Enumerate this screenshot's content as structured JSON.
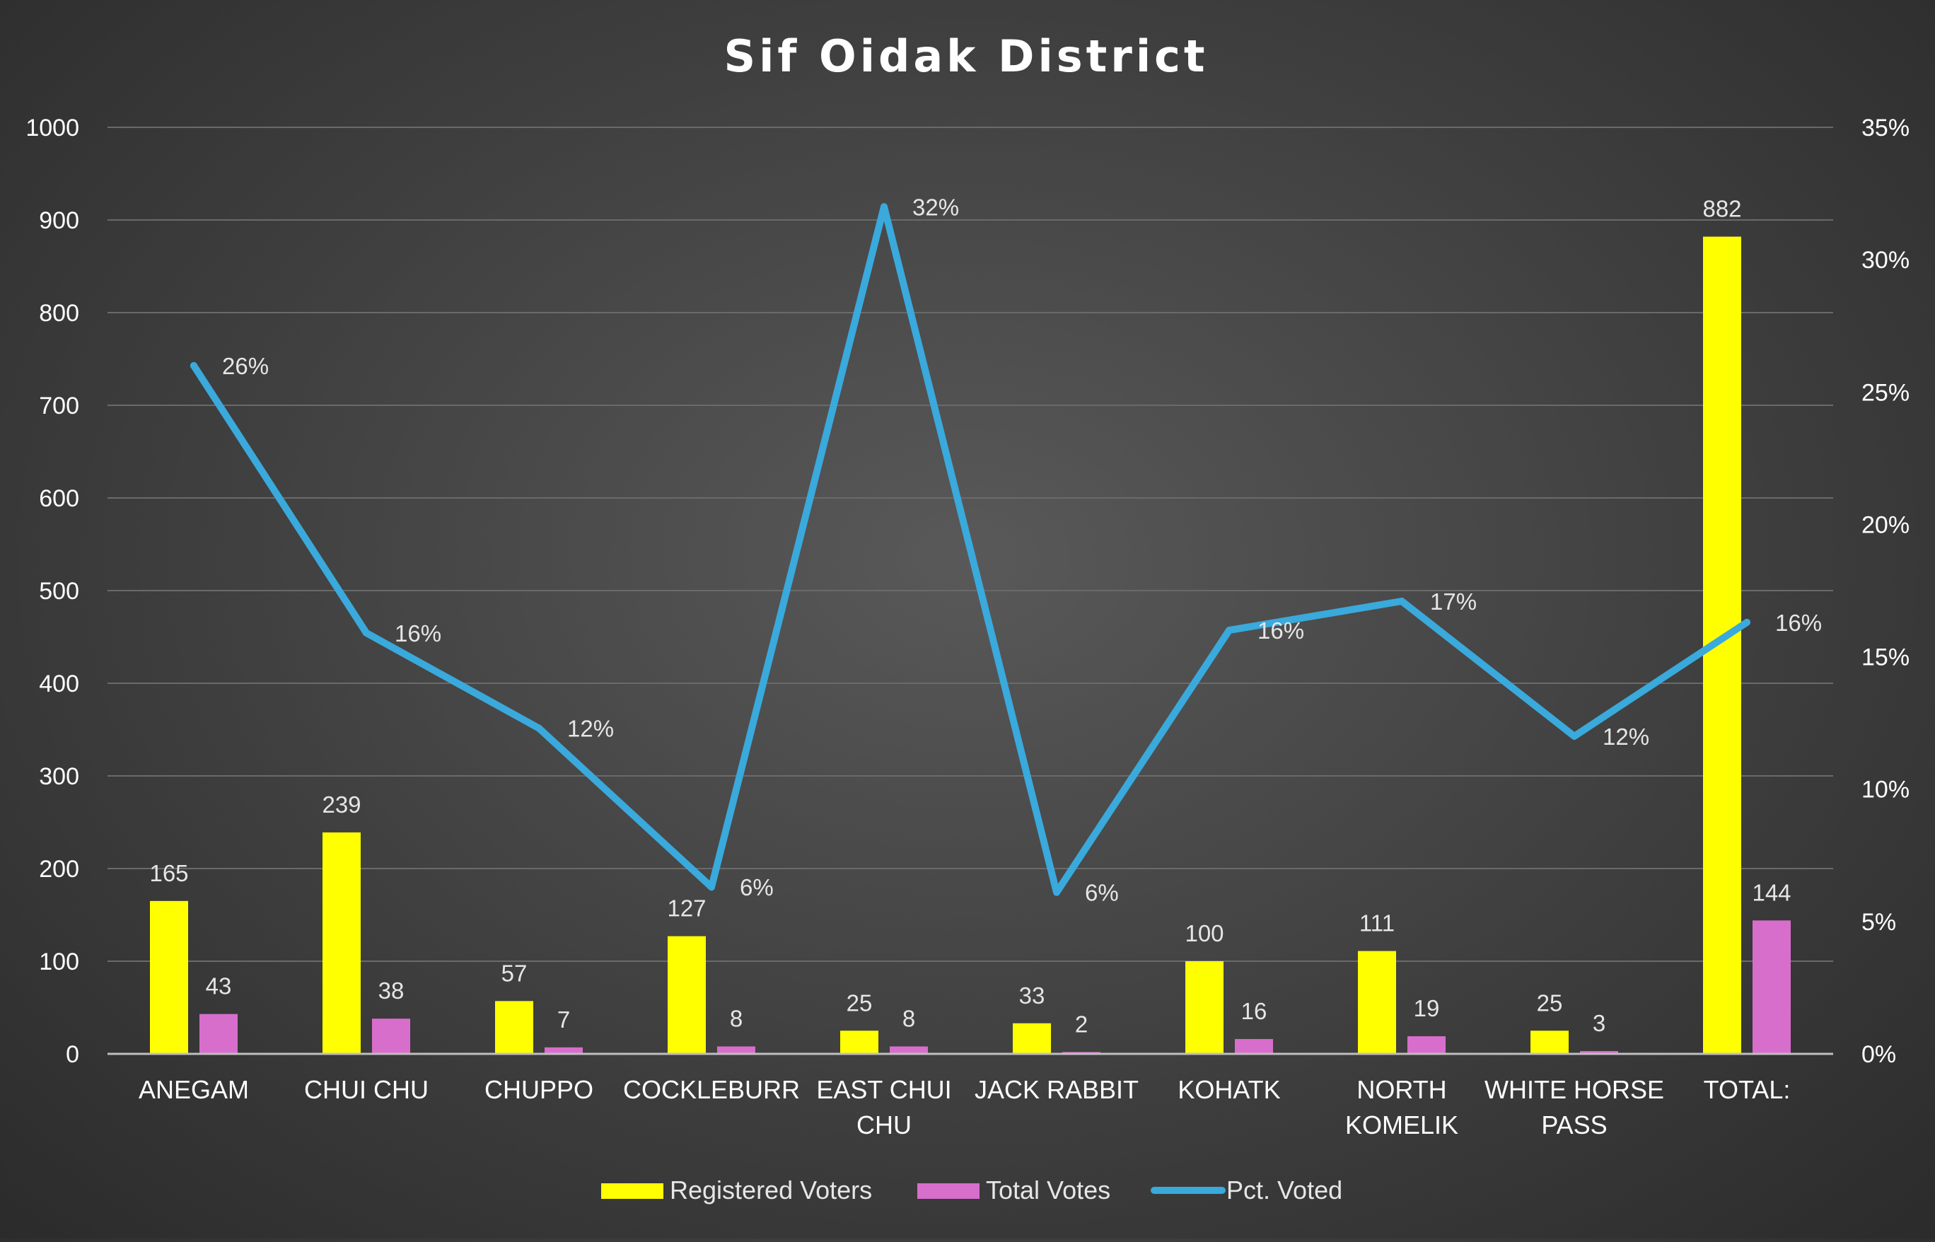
{
  "chart_data": {
    "type": "bar",
    "title": "Sif Oidak District",
    "categories": [
      [
        "ANEGAM"
      ],
      [
        "CHUI CHU"
      ],
      [
        "CHUPPO"
      ],
      [
        "COCKLEBURR"
      ],
      [
        "EAST CHUI",
        "CHU"
      ],
      [
        "JACK RABBIT"
      ],
      [
        "KOHATK"
      ],
      [
        "NORTH",
        "KOMELIK"
      ],
      [
        "WHITE HORSE",
        "PASS"
      ],
      [
        "TOTAL:"
      ]
    ],
    "series": [
      {
        "name": "Registered Voters",
        "type": "bar",
        "axis": "left",
        "color": "#ffff00",
        "values": [
          165,
          239,
          57,
          127,
          25,
          33,
          100,
          111,
          25,
          882
        ],
        "labels": [
          "165",
          "239",
          "57",
          "127",
          "25",
          "33",
          "100",
          "111",
          "25",
          "882"
        ]
      },
      {
        "name": "Total Votes",
        "type": "bar",
        "axis": "left",
        "color": "#d86ecc",
        "values": [
          43,
          38,
          7,
          8,
          8,
          2,
          16,
          19,
          3,
          144
        ],
        "labels": [
          "43",
          "38",
          "7",
          "8",
          "8",
          "2",
          "16",
          "19",
          "3",
          "144"
        ]
      },
      {
        "name": "Pct. Voted",
        "type": "line",
        "axis": "right",
        "color": "#3aa9dc",
        "values": [
          0.26,
          0.159,
          0.123,
          0.063,
          0.32,
          0.061,
          0.16,
          0.171,
          0.12,
          0.163
        ],
        "labels": [
          "26%",
          "16%",
          "12%",
          "6%",
          "32%",
          "6%",
          "16%",
          "17%",
          "12%",
          "16%"
        ]
      }
    ],
    "y_left": {
      "min": 0,
      "max": 1000,
      "step": 100,
      "ticks": [
        "0",
        "100",
        "200",
        "300",
        "400",
        "500",
        "600",
        "700",
        "800",
        "900",
        "1000"
      ]
    },
    "y_right": {
      "min": 0,
      "max": 0.35,
      "step": 0.05,
      "ticks": [
        "0%",
        "5%",
        "10%",
        "15%",
        "20%",
        "25%",
        "30%",
        "35%"
      ]
    },
    "grid": true,
    "legend_position": "bottom",
    "colors": {
      "gridline": "#6a6a6a",
      "axis_line": "#bfbfbf",
      "text": "#ffffff",
      "label_text": "#e6e6e6"
    }
  }
}
